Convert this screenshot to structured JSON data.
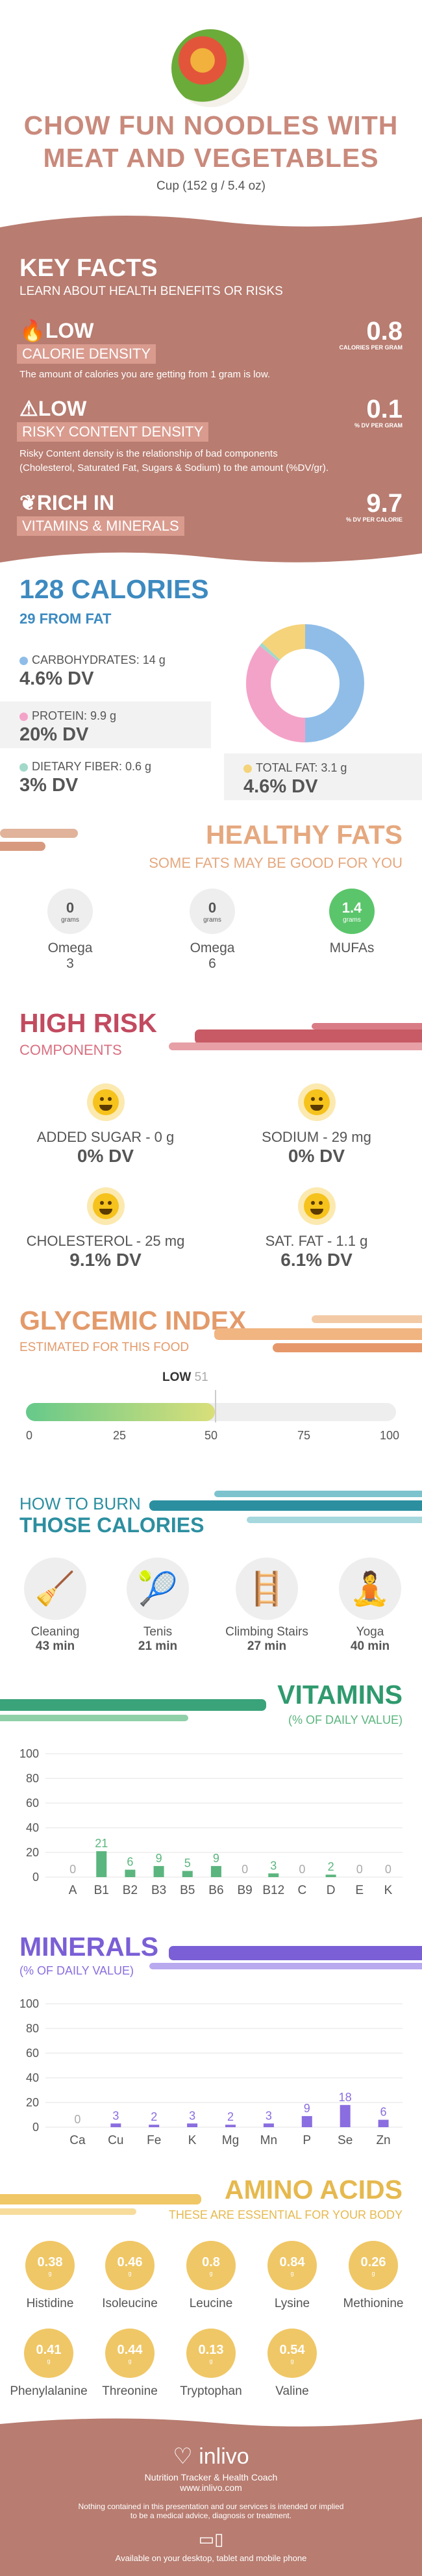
{
  "header": {
    "title_line1": "CHOW FUN NOODLES WITH",
    "title_line2": "MEAT AND VEGETABLES",
    "serving": "Cup (152 g / 5.4 oz)",
    "image_icon": "vegetables-bowl-icon"
  },
  "key_facts": {
    "title": "KEY FACTS",
    "subtitle": "LEARN ABOUT HEALTH BENEFITS OR RISKS",
    "items": [
      {
        "tag1": "LOW",
        "tag2": "CALORIE DENSITY",
        "icon": "fire-icon",
        "value": "0.8",
        "unit": "CALORIES PER GRAM",
        "desc": "The amount of calories you are getting from 1 gram is low."
      },
      {
        "tag1": "LOW",
        "tag2": "RISKY CONTENT DENSITY",
        "icon": "warning-icon",
        "value": "0.1",
        "unit": "% DV PER GRAM",
        "desc1": "Risky Content density is the relationship of bad components",
        "desc2": "(Cholesterol, Saturated Fat, Sugars & Sodium) to the amount (%DV/gr)."
      },
      {
        "tag1": "RICH  IN",
        "tag2": "VITAMINS & MINERALS",
        "icon": "leaf-icon",
        "value": "9.7",
        "unit": "% DV PER CALORIE"
      }
    ]
  },
  "calories": {
    "title": "128 CALORIES",
    "subtitle": "29 FROM FAT",
    "carbs_label": "CARBOHYDRATES: 14 g",
    "carbs_dv": "4.6% DV",
    "protein_label": "PROTEIN: 9.9 g",
    "protein_dv": "20% DV",
    "fiber_label": "DIETARY FIBER: 0.6 g",
    "fiber_dv": "3% DV",
    "fat_label": "TOTAL FAT: 3.1 g",
    "fat_dv": "4.6% DV",
    "colors": {
      "carbs": "#8fbde8",
      "protein": "#f4a3c8",
      "fiber": "#a3d9c9",
      "fat": "#f5d37a"
    },
    "donut_fraction": {
      "carbs": 0.5,
      "protein": 0.36,
      "fat": 0.13,
      "fiber": 0.01
    }
  },
  "healthy_fats": {
    "title": "HEALTHY FATS",
    "subtitle": "SOME FATS MAY BE GOOD FOR YOU",
    "items": [
      {
        "value": "0",
        "unit": "grams",
        "name": "Omega 3"
      },
      {
        "value": "0",
        "unit": "grams",
        "name": "Omega 6"
      },
      {
        "value": "1.4",
        "unit": "grams",
        "name": "MUFAs"
      }
    ]
  },
  "high_risk": {
    "title": "HIGH RISK",
    "subtitle": "COMPONENTS",
    "items": [
      {
        "label": "ADDED SUGAR - 0 g",
        "dv": "0% DV"
      },
      {
        "label": "SODIUM - 29 mg",
        "dv": "0% DV"
      },
      {
        "label": "CHOLESTEROL - 25 mg",
        "dv": "9.1% DV"
      },
      {
        "label": "SAT. FAT - 1.1 g",
        "dv": "6.1% DV"
      }
    ]
  },
  "glycemic": {
    "title": "GLYCEMIC INDEX",
    "subtitle": "ESTIMATED FOR THIS FOOD",
    "level": "LOW",
    "value": "51",
    "ticks": [
      "0",
      "25",
      "50",
      "75",
      "100"
    ],
    "fill_fraction": 0.51
  },
  "burn": {
    "title1": "HOW TO BURN",
    "title2": "THOSE CALORIES",
    "items": [
      {
        "name": "Cleaning",
        "time": "43 min",
        "icon": "cleaning-person-icon"
      },
      {
        "name": "Tenis",
        "time": "21 min",
        "icon": "tennis-player-icon"
      },
      {
        "name": "Climbing Stairs",
        "time": "27 min",
        "icon": "stairs-climber-icon"
      },
      {
        "name": "Yoga",
        "time": "40 min",
        "icon": "yoga-pose-icon"
      }
    ]
  },
  "vitamins": {
    "title": "VITAMINS",
    "subtitle": "(% OF DAILY VALUE)"
  },
  "minerals": {
    "title": "MINERALS",
    "subtitle": "(% OF DAILY VALUE)"
  },
  "chart_data": [
    {
      "type": "bar",
      "title": "VITAMINS",
      "ylabel": "",
      "xlabel": "",
      "ylim": [
        0,
        100
      ],
      "yticks": [
        "0",
        "20",
        "40",
        "60",
        "80",
        "100"
      ],
      "categories": [
        "A",
        "B1",
        "B2",
        "B3",
        "B5",
        "B6",
        "B9",
        "B12",
        "C",
        "D",
        "E",
        "K"
      ],
      "values": [
        0,
        21,
        6,
        9,
        5,
        9,
        0,
        3,
        0,
        2,
        0,
        0
      ],
      "color": "#5bb57e"
    },
    {
      "type": "bar",
      "title": "MINERALS",
      "ylabel": "",
      "xlabel": "",
      "ylim": [
        0,
        100
      ],
      "yticks": [
        "0",
        "20",
        "40",
        "60",
        "80",
        "100"
      ],
      "categories": [
        "Ca",
        "Cu",
        "Fe",
        "K",
        "Mg",
        "Mn",
        "P",
        "Se",
        "Zn"
      ],
      "values": [
        0,
        3,
        2,
        3,
        2,
        3,
        9,
        18,
        6
      ],
      "color": "#8a6de0"
    }
  ],
  "amino": {
    "title": "AMINO ACIDS",
    "subtitle": "THESE ARE ESSENTIAL FOR YOUR BODY",
    "unit": "g",
    "items": [
      {
        "v": "0.38",
        "n": "Histidine"
      },
      {
        "v": "0.46",
        "n": "Isoleucine"
      },
      {
        "v": "0.8",
        "n": "Leucine"
      },
      {
        "v": "0.84",
        "n": "Lysine"
      },
      {
        "v": "0.26",
        "n": "Methionine"
      },
      {
        "v": "0.41",
        "n": "Phenylalanine"
      },
      {
        "v": "0.44",
        "n": "Threonine"
      },
      {
        "v": "0.13",
        "n": "Tryptophan"
      },
      {
        "v": "0.54",
        "n": "Valine"
      }
    ]
  },
  "footer": {
    "brand": "inlivo",
    "tagline": "Nutrition Tracker & Health Coach",
    "url": "www.inlivo.com",
    "disclaimer1": "Nothing contained in this presentation and our services is intended or implied",
    "disclaimer2": "to be a medical advice, diagnosis or treatment.",
    "available": "Available on your desktop, tablet and mobile phone"
  }
}
